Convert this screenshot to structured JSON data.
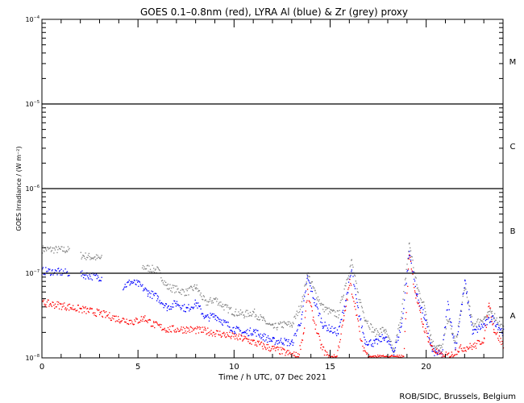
{
  "chart_data": {
    "type": "scatter",
    "title": "GOES 0.1–0.8nm (red), LYRA Al (blue) & Zr (grey) proxy",
    "xlabel": "Time / h UTC, 07 Dec 2021",
    "ylabel": "GOES Irradiance / (W m⁻²)",
    "xlim": [
      0,
      24
    ],
    "ylim": [
      1e-08,
      0.0001
    ],
    "yscale": "log",
    "xticks": [
      0,
      5,
      10,
      15,
      20
    ],
    "yticks": [
      {
        "value": 1e-08,
        "base": "10",
        "exp": "−8"
      },
      {
        "value": 1e-07,
        "base": "10",
        "exp": "−7"
      },
      {
        "value": 1e-06,
        "base": "10",
        "exp": "−6"
      },
      {
        "value": 1e-05,
        "base": "10",
        "exp": "−5"
      },
      {
        "value": 0.0001,
        "base": "10",
        "exp": "−4"
      }
    ],
    "reference_lines": [
      1e-07,
      1e-06,
      1e-05
    ],
    "flare_classes": [
      {
        "label": "A",
        "value": 3.2e-08
      },
      {
        "label": "B",
        "value": 3.2e-07
      },
      {
        "label": "C",
        "value": 3.2e-06
      },
      {
        "label": "M",
        "value": 3.2e-05
      }
    ],
    "series": [
      {
        "name": "LYRA Zr proxy",
        "color": "#808080",
        "segments": [
          [
            [
              0,
              1.95e-07
            ],
            [
              1.4,
              1.9e-07
            ]
          ],
          [
            [
              2,
              1.65e-07
            ],
            [
              3.1,
              1.5e-07
            ]
          ],
          [
            [
              5.2,
              1.2e-07
            ],
            [
              6,
              1.1e-07
            ],
            [
              6.5,
              7e-08
            ],
            [
              7.5,
              6e-08
            ],
            [
              8,
              7e-08
            ],
            [
              8.5,
              4.5e-08
            ],
            [
              9,
              5e-08
            ],
            [
              9.5,
              4e-08
            ],
            [
              10,
              3.5e-08
            ],
            [
              10.5,
              3.3e-08
            ],
            [
              11,
              3.5e-08
            ],
            [
              11.5,
              2.8e-08
            ],
            [
              12,
              2.3e-08
            ],
            [
              12.5,
              2.5e-08
            ],
            [
              13,
              2.5e-08
            ],
            [
              13.5,
              4.5e-08
            ],
            [
              13.8,
              1e-07
            ],
            [
              14.2,
              6e-08
            ],
            [
              14.6,
              4e-08
            ],
            [
              15,
              3.5e-08
            ],
            [
              15.4,
              3.3e-08
            ],
            [
              15.8,
              8e-08
            ],
            [
              16.1,
              1.4e-07
            ],
            [
              16.4,
              6e-08
            ],
            [
              16.8,
              3e-08
            ],
            [
              17.3,
              2e-08
            ],
            [
              17.8,
              2.2e-08
            ],
            [
              18.3,
              1.2e-08
            ],
            [
              18.7,
              3.5e-08
            ],
            [
              19.1,
              2.3e-07
            ],
            [
              19.5,
              7e-08
            ],
            [
              19.9,
              4e-08
            ],
            [
              20.3,
              1.5e-08
            ],
            [
              20.8,
              1.3e-08
            ],
            [
              21.1,
              3e-08
            ],
            [
              21.5,
              1.5e-08
            ],
            [
              22,
              7e-08
            ],
            [
              22.4,
              2.5e-08
            ],
            [
              23,
              3e-08
            ],
            [
              23.4,
              3.5e-08
            ],
            [
              24,
              2.2e-08
            ]
          ]
        ]
      },
      {
        "name": "LYRA Al proxy",
        "color": "#0000ff",
        "segments": [
          [
            [
              0,
              1.08e-07
            ],
            [
              1.4,
              1.02e-07
            ]
          ],
          [
            [
              2,
              9.8e-08
            ],
            [
              3.1,
              9e-08
            ]
          ],
          [
            [
              4.2,
              7e-08
            ],
            [
              4.6,
              8e-08
            ],
            [
              5,
              7.5e-08
            ],
            [
              5.5,
              6e-08
            ],
            [
              6,
              5.2e-08
            ],
            [
              6.5,
              4e-08
            ],
            [
              7,
              4.5e-08
            ],
            [
              7.5,
              3.8e-08
            ],
            [
              8,
              4.5e-08
            ],
            [
              8.5,
              3e-08
            ],
            [
              9,
              3.2e-08
            ],
            [
              9.5,
              2.6e-08
            ],
            [
              10,
              2.2e-08
            ],
            [
              10.5,
              2e-08
            ],
            [
              11,
              2.1e-08
            ],
            [
              11.5,
              1.8e-08
            ],
            [
              12,
              1.6e-08
            ],
            [
              12.5,
              1.6e-08
            ],
            [
              13,
              1.5e-08
            ],
            [
              13.5,
              3e-08
            ],
            [
              13.8,
              9e-08
            ],
            [
              14.2,
              4.5e-08
            ],
            [
              14.6,
              2.5e-08
            ],
            [
              15,
              2.2e-08
            ],
            [
              15.4,
              2e-08
            ],
            [
              15.8,
              5e-08
            ],
            [
              16.1,
              1.1e-07
            ],
            [
              16.4,
              4e-08
            ],
            [
              16.8,
              1.6e-08
            ],
            [
              17.3,
              1.5e-08
            ],
            [
              17.8,
              1.8e-08
            ],
            [
              18.3,
              1.2e-08
            ],
            [
              18.7,
              2.5e-08
            ],
            [
              19.1,
              1.8e-07
            ],
            [
              19.5,
              5.5e-08
            ],
            [
              19.9,
              3e-08
            ],
            [
              20.3,
              1.2e-08
            ],
            [
              20.8,
              1.1e-08
            ],
            [
              21.1,
              4.5e-08
            ],
            [
              21.5,
              1.3e-08
            ],
            [
              22,
              8e-08
            ],
            [
              22.4,
              2e-08
            ],
            [
              23,
              2.5e-08
            ],
            [
              23.4,
              3e-08
            ],
            [
              24,
              2e-08
            ]
          ]
        ]
      },
      {
        "name": "GOES 0.1-0.8nm",
        "color": "#ff0000",
        "segments": [
          [
            [
              0,
              4.5e-08
            ],
            [
              1,
              4.2e-08
            ],
            [
              2,
              3.8e-08
            ],
            [
              3,
              3.4e-08
            ],
            [
              4,
              2.9e-08
            ],
            [
              4.8,
              2.7e-08
            ],
            [
              5.3,
              3e-08
            ],
            [
              5.8,
              2.5e-08
            ],
            [
              6.5,
              2.2e-08
            ],
            [
              7.5,
              2.2e-08
            ],
            [
              8.5,
              2.1e-08
            ],
            [
              9.5,
              1.9e-08
            ],
            [
              10.5,
              1.7e-08
            ],
            [
              11.5,
              1.4e-08
            ],
            [
              12.5,
              1.2e-08
            ],
            [
              13.3,
              1.05e-08
            ],
            [
              13.6,
              2e-08
            ],
            [
              13.8,
              5.9e-08
            ],
            [
              14.1,
              3e-08
            ],
            [
              14.5,
              1.4e-08
            ],
            [
              14.9,
              1e-08
            ],
            [
              15.3,
              1e-08
            ],
            [
              15.7,
              3e-08
            ],
            [
              16,
              8e-08
            ],
            [
              16.3,
              4e-08
            ],
            [
              16.6,
              1.5e-08
            ],
            [
              17,
              1e-08
            ],
            [
              18.8,
              1e-08
            ],
            [
              19.1,
              1.8e-07
            ],
            [
              19.4,
              6e-08
            ],
            [
              19.8,
              2.5e-08
            ],
            [
              20.3,
              1.3e-08
            ],
            [
              20.8,
              1.05e-08
            ],
            [
              21.3,
              1.1e-08
            ],
            [
              21.7,
              1.3e-08
            ],
            [
              22.5,
              1.4e-08
            ],
            [
              23,
              1.7e-08
            ],
            [
              23.25,
              4.5e-08
            ],
            [
              23.5,
              2.2e-08
            ],
            [
              24,
              1.4e-08
            ]
          ]
        ]
      }
    ],
    "credit": "ROB/SIDC, Brussels, Belgium"
  }
}
